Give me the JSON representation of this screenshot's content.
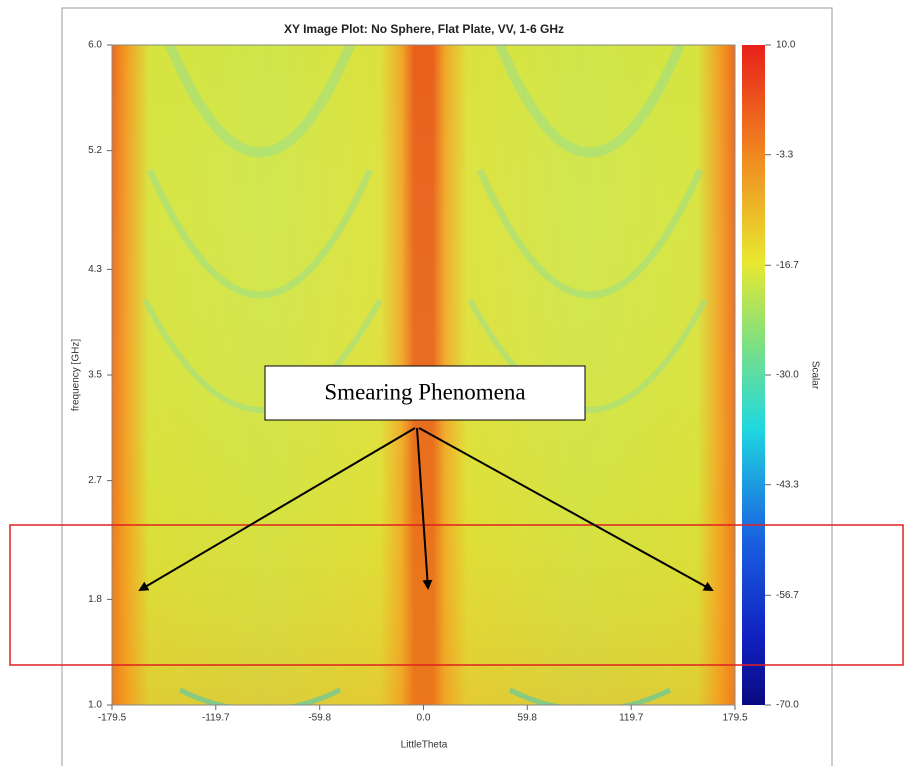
{
  "chart_data": {
    "type": "heatmap",
    "title": "XY Image Plot: No Sphere, Flat Plate, VV, 1-6 GHz",
    "x_label": "LittleTheta",
    "y_label": "frequency [GHz]",
    "xlim": [
      -179.5,
      179.5
    ],
    "xticks": [
      -179.5,
      -119.7,
      -59.8,
      {
        "value": 0,
        "label": "0.0"
      },
      59.8,
      119.7,
      179.5
    ],
    "ylim": [
      1,
      6
    ],
    "yticks": [
      {
        "value": 1,
        "label": "1.0"
      },
      1.8,
      2.7,
      3.5,
      4.3,
      5.2,
      {
        "value": 6,
        "label": "6.0"
      }
    ],
    "colorbar": {
      "label": "Scalar",
      "lim": [
        -70,
        10
      ],
      "ticks": [
        {
          "value": 10,
          "label": "10.0"
        },
        -3.3,
        -16.7,
        {
          "value": -30,
          "label": "-30.0"
        },
        -43.3,
        -56.7,
        {
          "value": -70,
          "label": "-70.0"
        }
      ]
    },
    "annotations": [
      "Smearing Phenomena"
    ]
  }
}
